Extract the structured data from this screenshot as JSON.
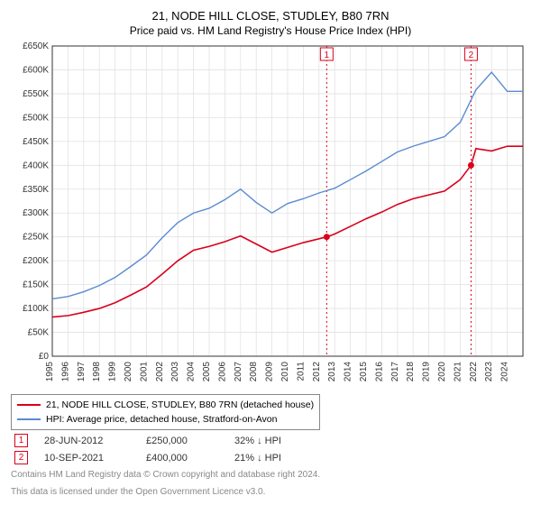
{
  "title": "21, NODE HILL CLOSE, STUDLEY, B80 7RN",
  "subtitle": "Price paid vs. HM Land Registry's House Price Index (HPI)",
  "chart": {
    "type": "line",
    "background_color": "#ffffff",
    "grid_color": "#e2e2e2",
    "axis_color": "#333333",
    "tick_font_size": 10,
    "x": {
      "min": 1995,
      "max": 2025,
      "ticks": [
        1995,
        1996,
        1997,
        1998,
        1999,
        2000,
        2001,
        2002,
        2003,
        2004,
        2005,
        2006,
        2007,
        2008,
        2009,
        2010,
        2011,
        2012,
        2013,
        2014,
        2015,
        2016,
        2017,
        2018,
        2019,
        2020,
        2021,
        2022,
        2023,
        2024
      ],
      "rotate": -90
    },
    "y": {
      "min": 0,
      "max": 650000,
      "step": 50000,
      "tick_prefix": "£",
      "tick_suffix": "K",
      "tick_divisor": 1000
    },
    "series": [
      {
        "name": "price_paid",
        "color": "#d9001b",
        "width": 1.6,
        "x": [
          1995,
          1996,
          1997,
          1998,
          1999,
          2000,
          2001,
          2002,
          2003,
          2004,
          2005,
          2006,
          2007,
          2008,
          2009,
          2010,
          2011,
          2012,
          2012.49,
          2013,
          2014,
          2015,
          2016,
          2017,
          2018,
          2019,
          2020,
          2021,
          2021.69,
          2022,
          2023,
          2024,
          2025
        ],
        "y": [
          82000,
          85000,
          92000,
          100000,
          112000,
          128000,
          145000,
          172000,
          200000,
          222000,
          230000,
          240000,
          252000,
          235000,
          218000,
          228000,
          238000,
          246000,
          250000,
          256000,
          272000,
          288000,
          302000,
          318000,
          330000,
          338000,
          346000,
          370000,
          400000,
          435000,
          430000,
          440000,
          440000
        ]
      },
      {
        "name": "hpi",
        "color": "#5b8bd0",
        "width": 1.4,
        "x": [
          1995,
          1996,
          1997,
          1998,
          1999,
          2000,
          2001,
          2002,
          2003,
          2004,
          2005,
          2006,
          2007,
          2008,
          2009,
          2010,
          2011,
          2012,
          2013,
          2014,
          2015,
          2016,
          2017,
          2018,
          2019,
          2020,
          2021,
          2022,
          2023,
          2024,
          2025
        ],
        "y": [
          120000,
          125000,
          135000,
          148000,
          165000,
          188000,
          212000,
          248000,
          280000,
          300000,
          310000,
          328000,
          350000,
          322000,
          300000,
          320000,
          330000,
          342000,
          352000,
          370000,
          388000,
          408000,
          428000,
          440000,
          450000,
          460000,
          490000,
          558000,
          595000,
          555000,
          555000
        ]
      }
    ],
    "vlines": [
      {
        "x": 2012.49,
        "color": "#d9001b",
        "dash": "2,3",
        "badge": "1",
        "dot_y": 250000,
        "badge_top": true
      },
      {
        "x": 2021.69,
        "color": "#d9001b",
        "dash": "2,3",
        "badge": "2",
        "dot_y": 400000,
        "badge_top": true
      }
    ],
    "badge_style": {
      "border": "#d9001b",
      "fill": "#ffffff",
      "text": "#d9001b",
      "size": 14,
      "font_size": 10
    }
  },
  "legend": [
    {
      "label": "21, NODE HILL CLOSE, STUDLEY, B80 7RN (detached house)",
      "color": "#d9001b"
    },
    {
      "label": "HPI: Average price, detached house, Stratford-on-Avon",
      "color": "#5b8bd0"
    }
  ],
  "markers": [
    {
      "num": "1",
      "date": "28-JUN-2012",
      "price": "£250,000",
      "hpi_delta": "32%  ↓  HPI",
      "color": "#d9001b"
    },
    {
      "num": "2",
      "date": "10-SEP-2021",
      "price": "£400,000",
      "hpi_delta": "21%  ↓  HPI",
      "color": "#d9001b"
    }
  ],
  "footnote": {
    "line1": "Contains HM Land Registry data © Crown copyright and database right 2024.",
    "line2": "This data is licensed under the Open Government Licence v3.0."
  }
}
